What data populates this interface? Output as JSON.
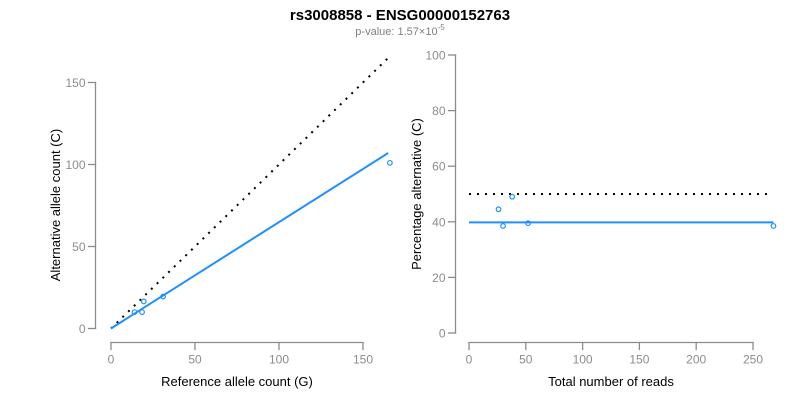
{
  "header": {
    "title": "rs3008858 - ENSG00000152763",
    "pvalue_text": "p-value: 1.57×10",
    "pvalue_exponent": "-5"
  },
  "colors": {
    "accent_blue": "#1E90FF",
    "dotted_line": "#000000",
    "axis": "#8C8C8C",
    "tick_label": "#8C8C8C",
    "label_text": "#000000",
    "subtitle_text": "#808080",
    "background": "#FFFFFF"
  },
  "chart_data": [
    {
      "type": "scatter",
      "title": "",
      "xlabel": "Reference allele count (G)",
      "ylabel": "Alternative allele count (C)",
      "xlim": [
        0,
        166
      ],
      "ylim": [
        0,
        166
      ],
      "xticks": [
        0,
        50,
        100,
        150
      ],
      "yticks": [
        0,
        50,
        100,
        150
      ],
      "grid": false,
      "legend": "none",
      "points": [
        [
          14,
          10
        ],
        [
          18.5,
          10
        ],
        [
          19.5,
          16.5
        ],
        [
          31,
          19.5
        ],
        [
          166,
          101
        ]
      ],
      "lines": [
        {
          "name": "identity-line",
          "style": "dotted",
          "color": "#000000",
          "from": [
            0,
            0
          ],
          "to": [
            165,
            165
          ]
        },
        {
          "name": "fit-line",
          "style": "solid",
          "color": "#1E90FF",
          "from": [
            0,
            0
          ],
          "to": [
            165,
            107
          ]
        }
      ]
    },
    {
      "type": "scatter",
      "title": "",
      "xlabel": "Total number of reads",
      "ylabel": "Percentage alternative (C)",
      "xlim": [
        0,
        268
      ],
      "ylim": [
        0,
        100
      ],
      "xticks": [
        0,
        50,
        100,
        150,
        200,
        250
      ],
      "yticks": [
        0,
        20,
        40,
        60,
        80,
        100
      ],
      "grid": false,
      "legend": "none",
      "points": [
        [
          26,
          44.5
        ],
        [
          30,
          38.5
        ],
        [
          38,
          49
        ],
        [
          52,
          39.5
        ],
        [
          268,
          38.5
        ]
      ],
      "lines": [
        {
          "name": "expected-50-line",
          "style": "dotted",
          "color": "#000000",
          "from": [
            0,
            50
          ],
          "to": [
            264,
            50
          ]
        },
        {
          "name": "fit-line",
          "style": "solid",
          "color": "#1E90FF",
          "from": [
            0,
            39.8
          ],
          "to": [
            268,
            39.8
          ]
        }
      ]
    }
  ]
}
